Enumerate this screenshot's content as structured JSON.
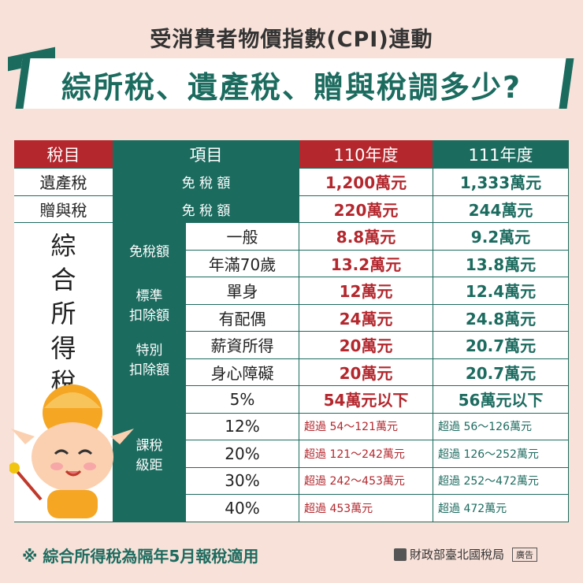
{
  "header": {
    "subtitle": "受消費者物價指數(CPI)連動",
    "title": "綜所稅、遺產稅、贈與稅調多少?"
  },
  "table": {
    "headers": {
      "tax_item": "稅目",
      "item": "項目",
      "y110": "110年度",
      "y111": "111年度"
    },
    "estate": {
      "name": "遺產稅",
      "item": "免 稅 額",
      "y110": "1,200萬元",
      "y111": "1,333萬元"
    },
    "gift": {
      "name": "贈與稅",
      "item": "免 稅 額",
      "y110": "220萬元",
      "y111": "244萬元"
    },
    "income_name": "綜合所得稅",
    "income_chars": [
      "綜",
      "合",
      "所",
      "得",
      "稅"
    ],
    "exemption": {
      "label": "免稅額",
      "rows": [
        {
          "sub": "一般",
          "y110": "8.8萬元",
          "y111": "9.2萬元"
        },
        {
          "sub": "年滿70歲",
          "y110": "13.2萬元",
          "y111": "13.8萬元"
        }
      ]
    },
    "standard": {
      "label_1": "標準",
      "label_2": "扣除額",
      "rows": [
        {
          "sub": "單身",
          "y110": "12萬元",
          "y111": "12.4萬元"
        },
        {
          "sub": "有配偶",
          "y110": "24萬元",
          "y111": "24.8萬元"
        }
      ]
    },
    "special": {
      "label_1": "特別",
      "label_2": "扣除額",
      "rows": [
        {
          "sub": "薪資所得",
          "y110": "20萬元",
          "y111": "20.7萬元"
        },
        {
          "sub": "身心障礙",
          "y110": "20萬元",
          "y111": "20.7萬元"
        }
      ]
    },
    "brackets": {
      "label_1": "課稅",
      "label_2": "級距",
      "rows": [
        {
          "rate": "5%",
          "y110": "54萬元以下",
          "y111": "56萬元以下"
        },
        {
          "rate": "12%",
          "y110": "超過 54～121萬元",
          "y111": "超過 56～126萬元"
        },
        {
          "rate": "20%",
          "y110": "超過 121～242萬元",
          "y111": "超過 126～252萬元"
        },
        {
          "rate": "30%",
          "y110": "超過 242～453萬元",
          "y111": "超過 252～472萬元"
        },
        {
          "rate": "40%",
          "y110": "超過 453萬元",
          "y111": "超過 472萬元"
        }
      ]
    }
  },
  "footer": {
    "note": "※ 綜合所得稅為隔年5月報稅適用",
    "org": "財政部臺北國稅局",
    "badge": "廣告"
  },
  "colors": {
    "green": "#1c6b5f",
    "red": "#b3272d",
    "background": "#f8e1d9"
  },
  "icons": [
    "mascot-character",
    "ministry-emblem-icon"
  ]
}
